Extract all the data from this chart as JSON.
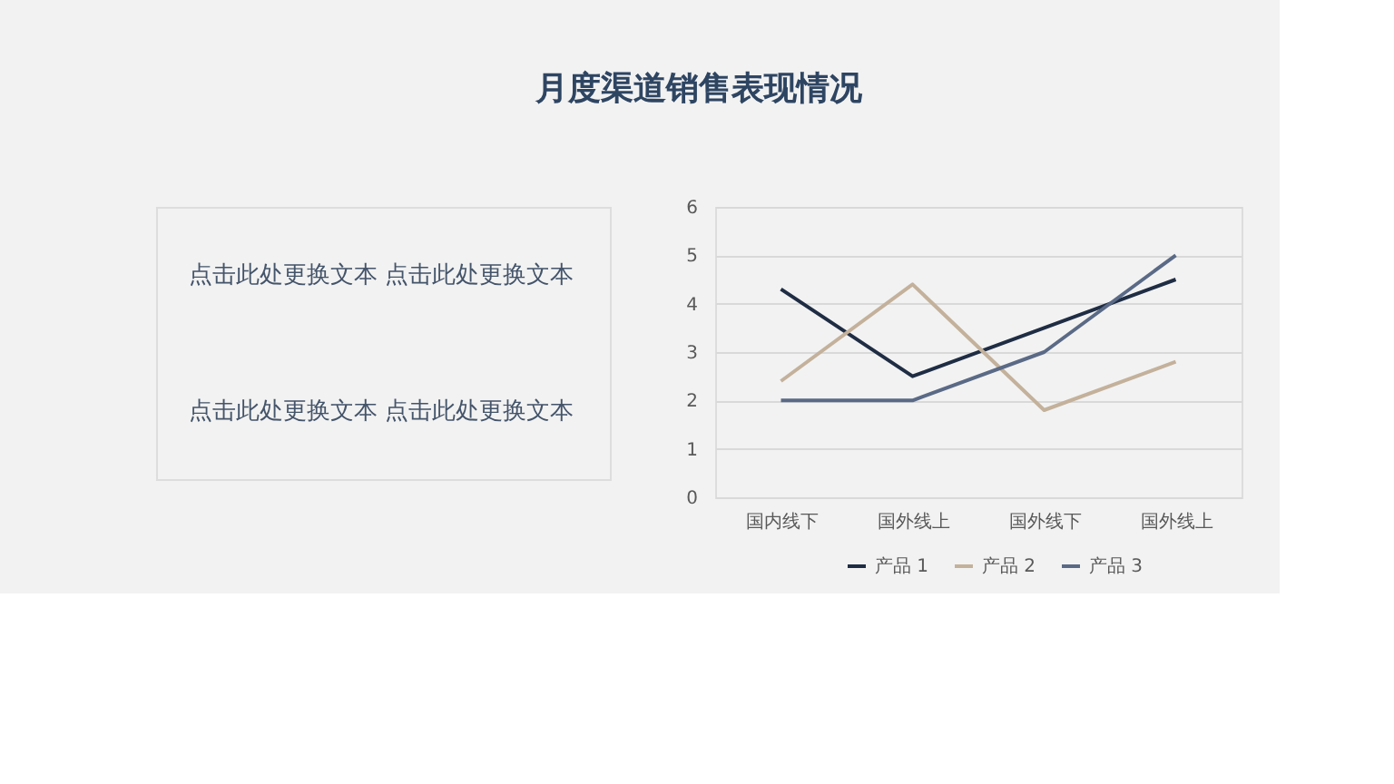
{
  "chart_data": {
    "type": "line",
    "title": "月度渠道销售表现情况",
    "categories": [
      "国内线下",
      "国外线上",
      "国外线下",
      "国外线上"
    ],
    "series": [
      {
        "name": "产品 1",
        "color": "#1f2d44",
        "values": [
          4.3,
          2.5,
          3.5,
          4.5
        ]
      },
      {
        "name": "产品 2",
        "color": "#c4b19b",
        "values": [
          2.4,
          4.4,
          1.8,
          2.8
        ]
      },
      {
        "name": "产品 3",
        "color": "#5a6a86",
        "values": [
          2,
          2,
          3,
          5
        ]
      }
    ],
    "ylim": [
      0,
      6
    ],
    "yticks": [
      0,
      1,
      2,
      3,
      4,
      5,
      6
    ],
    "grid": "y",
    "legend": "bottom",
    "marker": "none",
    "line_style": "solid",
    "annotations": [
      "点击此处更换文本 点击此处更换文本",
      "点击此处更换文本 点击此处更换文本"
    ]
  }
}
